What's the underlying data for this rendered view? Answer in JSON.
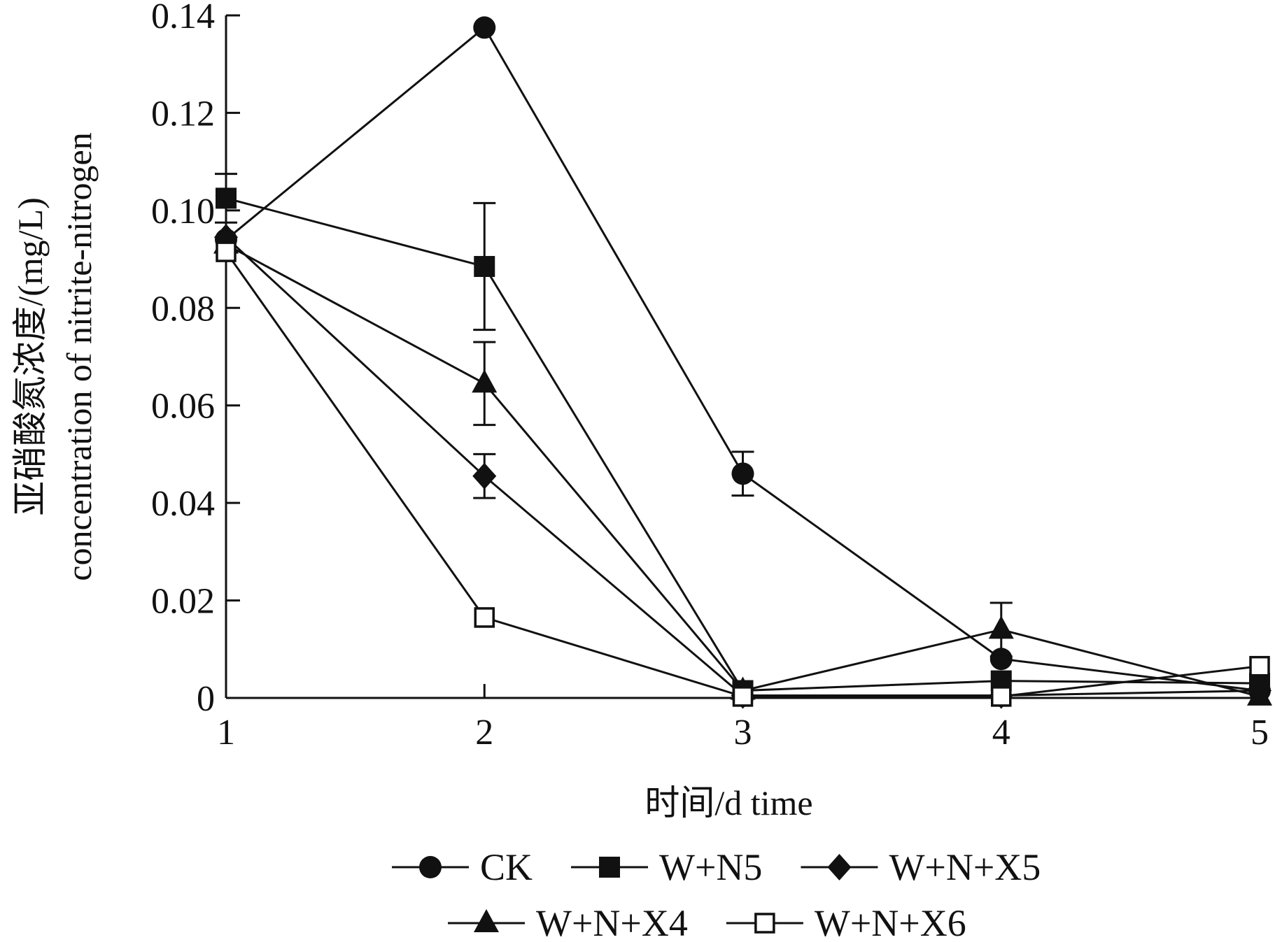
{
  "chart_data": {
    "type": "line",
    "title": "",
    "xlabel": "时间/d time",
    "ylabel_lines": [
      "亚硝酸氮浓度/(mg/L)",
      "concentration of nitrite-nitrogen"
    ],
    "x": [
      1,
      2,
      3,
      4,
      5
    ],
    "x_ticks": [
      "1",
      "2",
      "3",
      "4",
      "5"
    ],
    "y_ticks": [
      "0",
      "0.02",
      "0.04",
      "0.06",
      "0.08",
      "0.10",
      "0.12",
      "0.14"
    ],
    "xlim": [
      1,
      5
    ],
    "ylim": [
      0,
      0.14
    ],
    "grid": false,
    "legend_position": "bottom",
    "series": [
      {
        "name": "CK",
        "marker": "circle",
        "values": [
          0.094,
          0.1375,
          0.046,
          0.008,
          0.0015
        ],
        "errors": [
          0,
          0,
          0.0045,
          0,
          0
        ]
      },
      {
        "name": "W+N5",
        "marker": "square",
        "values": [
          0.1025,
          0.0885,
          0.0015,
          0.0035,
          0.003
        ],
        "errors": [
          0.005,
          0.013,
          0,
          0,
          0
        ]
      },
      {
        "name": "W+N+X5",
        "marker": "diamond",
        "values": [
          0.0945,
          0.0455,
          0.0005,
          0.0005,
          0.0015
        ],
        "errors": [
          0,
          0.0045,
          0,
          0,
          0
        ]
      },
      {
        "name": "W+N+X4",
        "marker": "triangle",
        "values": [
          0.093,
          0.0645,
          0.0015,
          0.014,
          0.0003
        ],
        "errors": [
          0,
          0.0085,
          0,
          0.0055,
          0
        ]
      },
      {
        "name": "W+N+X6",
        "marker": "open-square",
        "values": [
          0.0915,
          0.0165,
          0.0003,
          0.0003,
          0.0065
        ],
        "errors": [
          0,
          0,
          0,
          0,
          0
        ]
      }
    ],
    "colors": {
      "line": "#111111",
      "fill": "#111111",
      "open": "#ffffff"
    }
  }
}
